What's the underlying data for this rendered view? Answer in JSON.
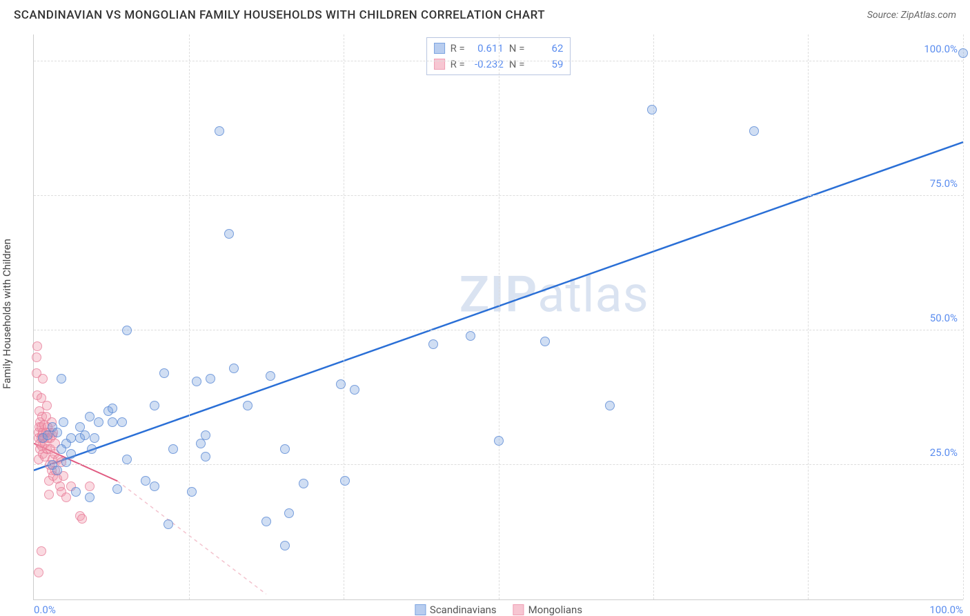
{
  "header": {
    "title": "SCANDINAVIAN VS MONGOLIAN FAMILY HOUSEHOLDS WITH CHILDREN CORRELATION CHART",
    "source_label": "Source: ",
    "source_link": "ZipAtlas.com"
  },
  "y_axis": {
    "label": "Family Households with Children"
  },
  "watermark": {
    "zip": "ZIP",
    "atlas": "atlas"
  },
  "chart": {
    "type": "scatter",
    "xlim": [
      0,
      100
    ],
    "ylim": [
      0,
      105
    ],
    "x_ticks": [
      0,
      100
    ],
    "x_tick_labels": [
      "0.0%",
      "100.0%"
    ],
    "y_ticks": [
      25,
      50,
      75,
      100
    ],
    "y_tick_labels": [
      "25.0%",
      "50.0%",
      "75.0%",
      "100.0%"
    ],
    "x_grid_positions": [
      0,
      16.67,
      33.33,
      50,
      66.67,
      83.33,
      100
    ],
    "background_color": "#ffffff",
    "grid_color": "#dddddd",
    "axis_color": "#cccccc",
    "tick_label_color": "#5b8def",
    "tick_fontsize": 15,
    "axis_label_fontsize": 15,
    "marker_size": 14,
    "series": {
      "scandinavians": {
        "label": "Scandinavians",
        "fill_color": "rgba(120,160,220,0.35)",
        "stroke_color": "rgba(80,130,210,0.7)",
        "swatch_fill": "#b8cdef",
        "swatch_border": "#7ba3e0",
        "R": "0.611",
        "N": "62",
        "trend": {
          "x1": 0,
          "y1": 24,
          "x2": 100,
          "y2": 85,
          "color": "#2a6fd6",
          "width": 2.5,
          "dash": "none"
        },
        "points": [
          [
            1,
            30
          ],
          [
            1.5,
            30.5
          ],
          [
            2,
            25
          ],
          [
            2,
            32
          ],
          [
            2.5,
            31
          ],
          [
            2.5,
            24
          ],
          [
            3,
            41
          ],
          [
            3.2,
            33
          ],
          [
            3.5,
            29
          ],
          [
            3.5,
            25.5
          ],
          [
            4,
            30
          ],
          [
            4.5,
            20
          ],
          [
            5,
            32
          ],
          [
            5,
            30
          ],
          [
            5.5,
            30.5
          ],
          [
            6,
            19
          ],
          [
            6,
            34
          ],
          [
            6.2,
            28
          ],
          [
            6.5,
            30
          ],
          [
            7,
            33
          ],
          [
            8,
            35
          ],
          [
            8.5,
            35.5
          ],
          [
            8.5,
            33
          ],
          [
            9,
            20.5
          ],
          [
            9.5,
            33
          ],
          [
            10,
            50
          ],
          [
            10,
            26
          ],
          [
            12,
            22
          ],
          [
            13,
            36
          ],
          [
            13,
            21
          ],
          [
            14,
            42
          ],
          [
            14.5,
            14
          ],
          [
            15,
            28
          ],
          [
            17,
            20
          ],
          [
            17.5,
            40.5
          ],
          [
            18,
            29
          ],
          [
            18.5,
            26.5
          ],
          [
            18.5,
            30.5
          ],
          [
            19,
            41
          ],
          [
            20,
            87
          ],
          [
            21,
            68
          ],
          [
            21.5,
            43
          ],
          [
            23,
            36
          ],
          [
            25,
            14.5
          ],
          [
            25.5,
            41.5
          ],
          [
            27,
            10
          ],
          [
            27,
            28
          ],
          [
            27.5,
            16
          ],
          [
            29,
            21.5
          ],
          [
            33,
            40
          ],
          [
            33.5,
            22
          ],
          [
            34.5,
            39
          ],
          [
            43,
            47.5
          ],
          [
            47,
            49
          ],
          [
            50,
            29.5
          ],
          [
            55,
            48
          ],
          [
            62,
            36
          ],
          [
            66.5,
            91
          ],
          [
            77.5,
            87
          ],
          [
            100,
            101.5
          ],
          [
            3,
            28
          ],
          [
            4,
            27
          ]
        ]
      },
      "mongolians": {
        "label": "Mongolians",
        "fill_color": "rgba(240,150,170,0.35)",
        "stroke_color": "rgba(230,120,150,0.7)",
        "swatch_fill": "#f7c6d2",
        "swatch_border": "#ef9db3",
        "R": "-0.232",
        "N": "59",
        "trend": {
          "x1": 0,
          "y1": 29,
          "x2": 9,
          "y2": 22,
          "color": "#e05a80",
          "width": 2,
          "dash": "none"
        },
        "trend_ext": {
          "x1": 9,
          "y1": 22,
          "x2": 25,
          "y2": 1,
          "color": "#f3c3ce",
          "width": 1.5,
          "dash": "5,5"
        },
        "points": [
          [
            0.3,
            45
          ],
          [
            0.3,
            42
          ],
          [
            0.4,
            47
          ],
          [
            0.4,
            38
          ],
          [
            0.5,
            30
          ],
          [
            0.5,
            31
          ],
          [
            0.5,
            26
          ],
          [
            0.6,
            32
          ],
          [
            0.6,
            35
          ],
          [
            0.7,
            28
          ],
          [
            0.7,
            33
          ],
          [
            0.7,
            29
          ],
          [
            0.8,
            30
          ],
          [
            0.8,
            32
          ],
          [
            0.8,
            37.5
          ],
          [
            0.9,
            30.5
          ],
          [
            0.9,
            28.5
          ],
          [
            0.9,
            34
          ],
          [
            1.0,
            31
          ],
          [
            1.0,
            27
          ],
          [
            1.0,
            41
          ],
          [
            1.1,
            30
          ],
          [
            1.1,
            32.5
          ],
          [
            1.2,
            26.5
          ],
          [
            1.2,
            29
          ],
          [
            1.3,
            31
          ],
          [
            1.3,
            34
          ],
          [
            1.4,
            28
          ],
          [
            1.4,
            36
          ],
          [
            1.5,
            30
          ],
          [
            1.5,
            32
          ],
          [
            1.6,
            22
          ],
          [
            1.6,
            19.5
          ],
          [
            1.7,
            25
          ],
          [
            1.7,
            31
          ],
          [
            1.8,
            30
          ],
          [
            1.8,
            28
          ],
          [
            1.9,
            33
          ],
          [
            1.9,
            24
          ],
          [
            2.0,
            30.5
          ],
          [
            2.0,
            26
          ],
          [
            2.1,
            23
          ],
          [
            2.1,
            31
          ],
          [
            2.2,
            27
          ],
          [
            2.3,
            24
          ],
          [
            2.3,
            29
          ],
          [
            2.5,
            22.5
          ],
          [
            2.6,
            26
          ],
          [
            2.8,
            21
          ],
          [
            3.0,
            20
          ],
          [
            3.0,
            25.5
          ],
          [
            3.2,
            23
          ],
          [
            3.5,
            19
          ],
          [
            4.0,
            21
          ],
          [
            5.0,
            15.5
          ],
          [
            5.2,
            15
          ],
          [
            6.0,
            21
          ],
          [
            0.5,
            5
          ],
          [
            0.8,
            9
          ]
        ]
      }
    }
  },
  "stats_box": {
    "R_label": "R =",
    "N_label": "N ="
  },
  "legend": {
    "items": [
      "scandinavians",
      "mongolians"
    ]
  }
}
